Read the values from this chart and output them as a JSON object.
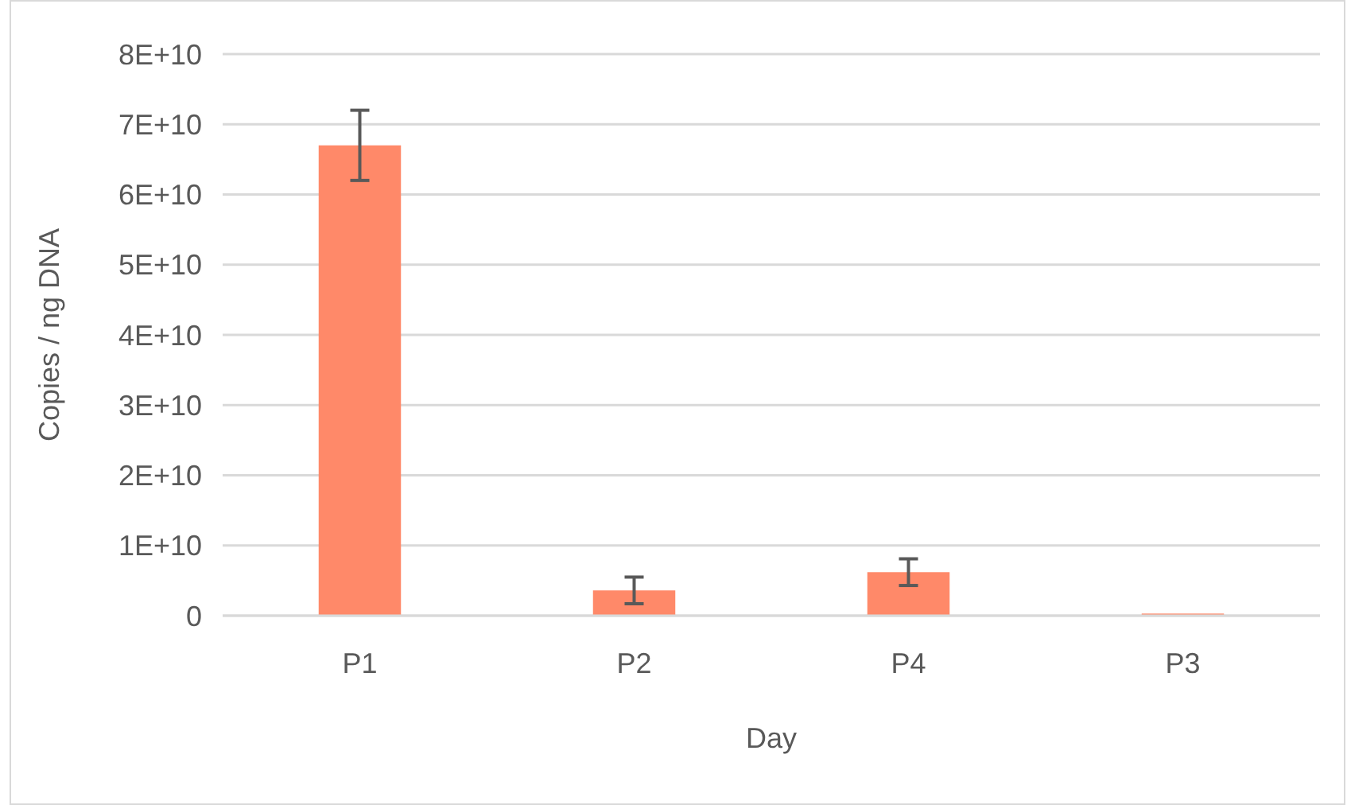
{
  "chart_data": {
    "type": "bar",
    "xlabel": "Day",
    "ylabel": "Copies / ng DNA",
    "categories": [
      "P1",
      "P2",
      "P4",
      "P3"
    ],
    "values": [
      67000000000,
      3600000000,
      6200000000,
      300000000
    ],
    "errors": [
      5000000000,
      1900000000,
      1900000000,
      null
    ],
    "color": "#ff8969",
    "ylim": [
      0,
      80000000000
    ],
    "yticks": [
      {
        "value": 0,
        "label": "0"
      },
      {
        "value": 10000000000,
        "label": "1E+10"
      },
      {
        "value": 20000000000,
        "label": "2E+10"
      },
      {
        "value": 30000000000,
        "label": "3E+10"
      },
      {
        "value": 40000000000,
        "label": "4E+10"
      },
      {
        "value": 50000000000,
        "label": "5E+10"
      },
      {
        "value": 60000000000,
        "label": "6E+10"
      },
      {
        "value": 70000000000,
        "label": "7E+10"
      },
      {
        "value": 80000000000,
        "label": "8E+10"
      }
    ],
    "grid": "y"
  }
}
